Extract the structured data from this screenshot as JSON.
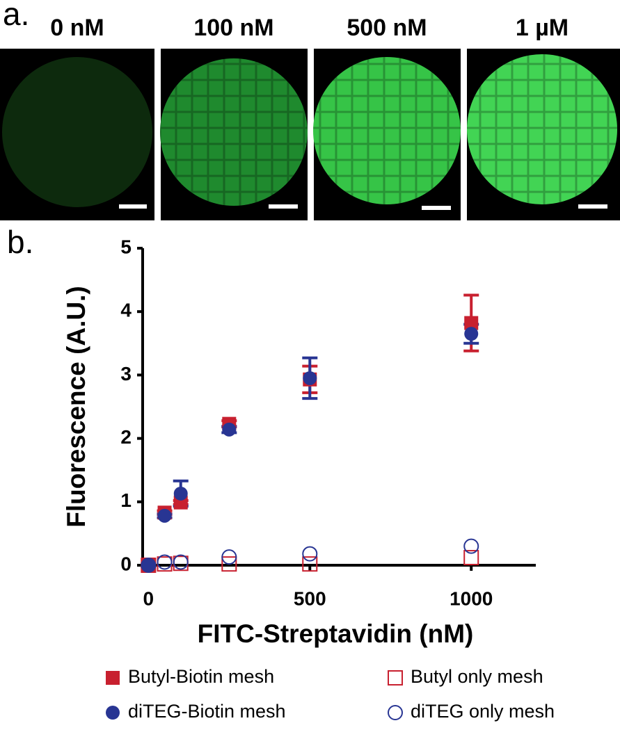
{
  "panel_a": {
    "label": "a.",
    "images": [
      "0 nM",
      "100 nM",
      "500 nM",
      "1 µM"
    ]
  },
  "chart_data": {
    "type": "scatter",
    "panel_label": "b.",
    "x_label": "FITC-Streptavidin (nM)",
    "y_label": "Fluorescence (A.U.)",
    "x": [
      0,
      50,
      100,
      250,
      500,
      1000
    ],
    "xlim": [
      -18,
      1200
    ],
    "xticks": [
      0,
      500,
      1000
    ],
    "ylim": [
      0,
      5
    ],
    "yticks": [
      0,
      1,
      2,
      3,
      4,
      5
    ],
    "series": [
      {
        "name": "Butyl-Biotin mesh",
        "color": "#c8202f",
        "marker": "square",
        "filled": true,
        "values": [
          0,
          0.83,
          0.99,
          2.23,
          2.93,
          3.82
        ],
        "errors": [
          0.02,
          0.03,
          0.03,
          0.05,
          0.21,
          0.44
        ]
      },
      {
        "name": "Butyl only mesh",
        "color": "#c8202f",
        "marker": "square",
        "filled": false,
        "values": [
          0,
          0.02,
          0.03,
          0.02,
          0.02,
          0.12
        ]
      },
      {
        "name": "diTEG-Biotin mesh",
        "color": "#283593",
        "marker": "circle",
        "filled": true,
        "values": [
          0,
          0.78,
          1.13,
          2.14,
          2.95,
          3.65
        ],
        "errors": [
          0.02,
          0.03,
          0.2,
          0.05,
          0.32,
          0.15
        ]
      },
      {
        "name": "diTEG only mesh",
        "color": "#283593",
        "marker": "circle",
        "filled": false,
        "values": [
          0,
          0.05,
          0.05,
          0.13,
          0.18,
          0.3
        ]
      }
    ]
  }
}
